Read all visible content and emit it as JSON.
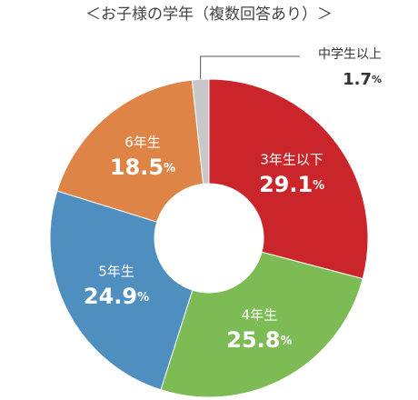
{
  "chart_data": {
    "type": "donut",
    "title": "＜お子様の学年（複数回答あり）＞",
    "categories": [
      "3年生以下",
      "4年生",
      "5年生",
      "6年生",
      "中学生以上"
    ],
    "values": [
      29.1,
      25.8,
      24.9,
      18.5,
      1.7
    ],
    "value_labels": [
      "29.1%",
      "25.8%",
      "24.9%",
      "18.5%",
      "1.7%"
    ],
    "colors": [
      "#c9252b",
      "#7dbb55",
      "#4f8fbf",
      "#dd8446",
      "#c8c8c8"
    ]
  }
}
